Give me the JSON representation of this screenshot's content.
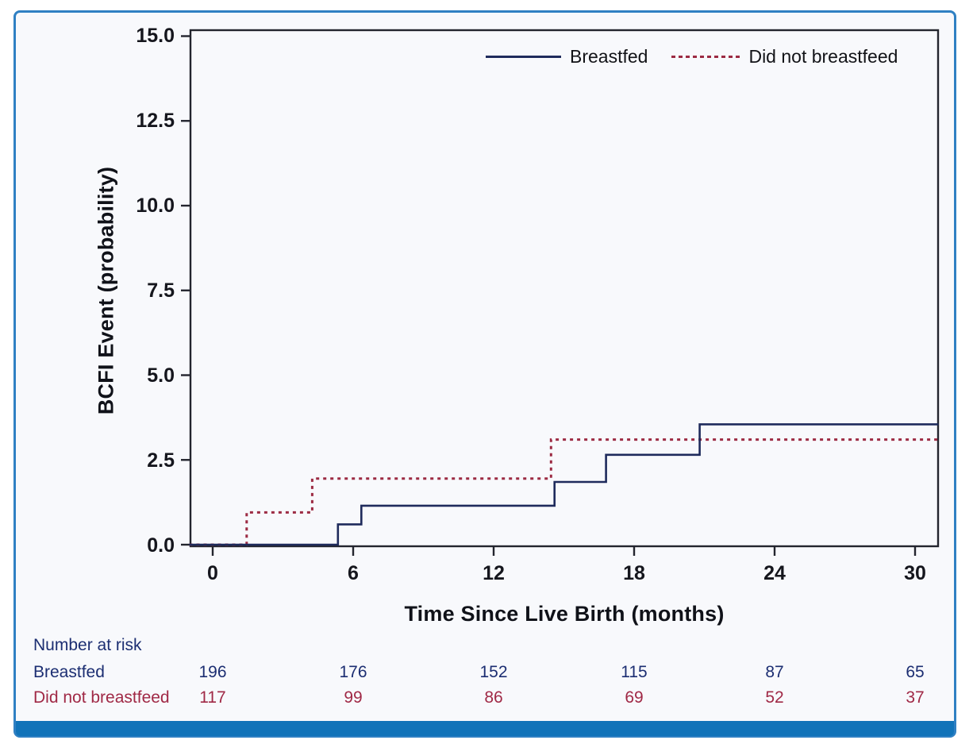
{
  "figure": {
    "background": "#f8f9fc",
    "border_color": "#2f80c3",
    "footer_bar_color": "#1173b9"
  },
  "chart_data": {
    "type": "line",
    "subtype": "kaplan-meier-cumulative-incidence-step",
    "title": "",
    "xlabel": "Time Since Live Birth (months)",
    "ylabel": "BCFI Event (probability)",
    "xlim": [
      -1,
      31
    ],
    "ylim": [
      0,
      15
    ],
    "grid": false,
    "legend_position": "top-right-inside",
    "axis_color": "#23252e",
    "xticks": [
      0,
      6,
      12,
      18,
      24,
      30
    ],
    "yticks": [
      0.0,
      2.5,
      5.0,
      7.5,
      10.0,
      12.5,
      15.0
    ],
    "xtick_labels": [
      "0",
      "6",
      "12",
      "18",
      "24",
      "30"
    ],
    "ytick_labels": [
      "0.0",
      "2.5",
      "5.0",
      "7.5",
      "10.0",
      "12.5",
      "15.0"
    ],
    "series": [
      {
        "name": "Breastfed",
        "color": "#1f2b5c",
        "style": "solid",
        "steps": [
          [
            -1,
            0
          ],
          [
            5.35,
            0.6
          ],
          [
            6.35,
            1.15
          ],
          [
            14.6,
            1.85
          ],
          [
            16.8,
            2.65
          ],
          [
            20.8,
            3.55
          ],
          [
            31,
            3.55
          ]
        ]
      },
      {
        "name": "Did not breastfeed",
        "color": "#9c2b43",
        "style": "dotted",
        "steps": [
          [
            -1,
            0
          ],
          [
            1.45,
            0.95
          ],
          [
            4.25,
            1.95
          ],
          [
            14.45,
            3.1
          ],
          [
            31,
            3.1
          ]
        ]
      }
    ]
  },
  "risk_table": {
    "title": "Number at risk",
    "columns_at_months": [
      0,
      6,
      12,
      18,
      24,
      30
    ],
    "rows": [
      {
        "label": "Breastfed",
        "color": "#1c2e72",
        "values": [
          "196",
          "176",
          "152",
          "115",
          "87",
          "65"
        ]
      },
      {
        "label": "Did not breastfeed",
        "color": "#a02946",
        "values": [
          "117",
          "99",
          "86",
          "69",
          "52",
          "37"
        ]
      }
    ]
  }
}
